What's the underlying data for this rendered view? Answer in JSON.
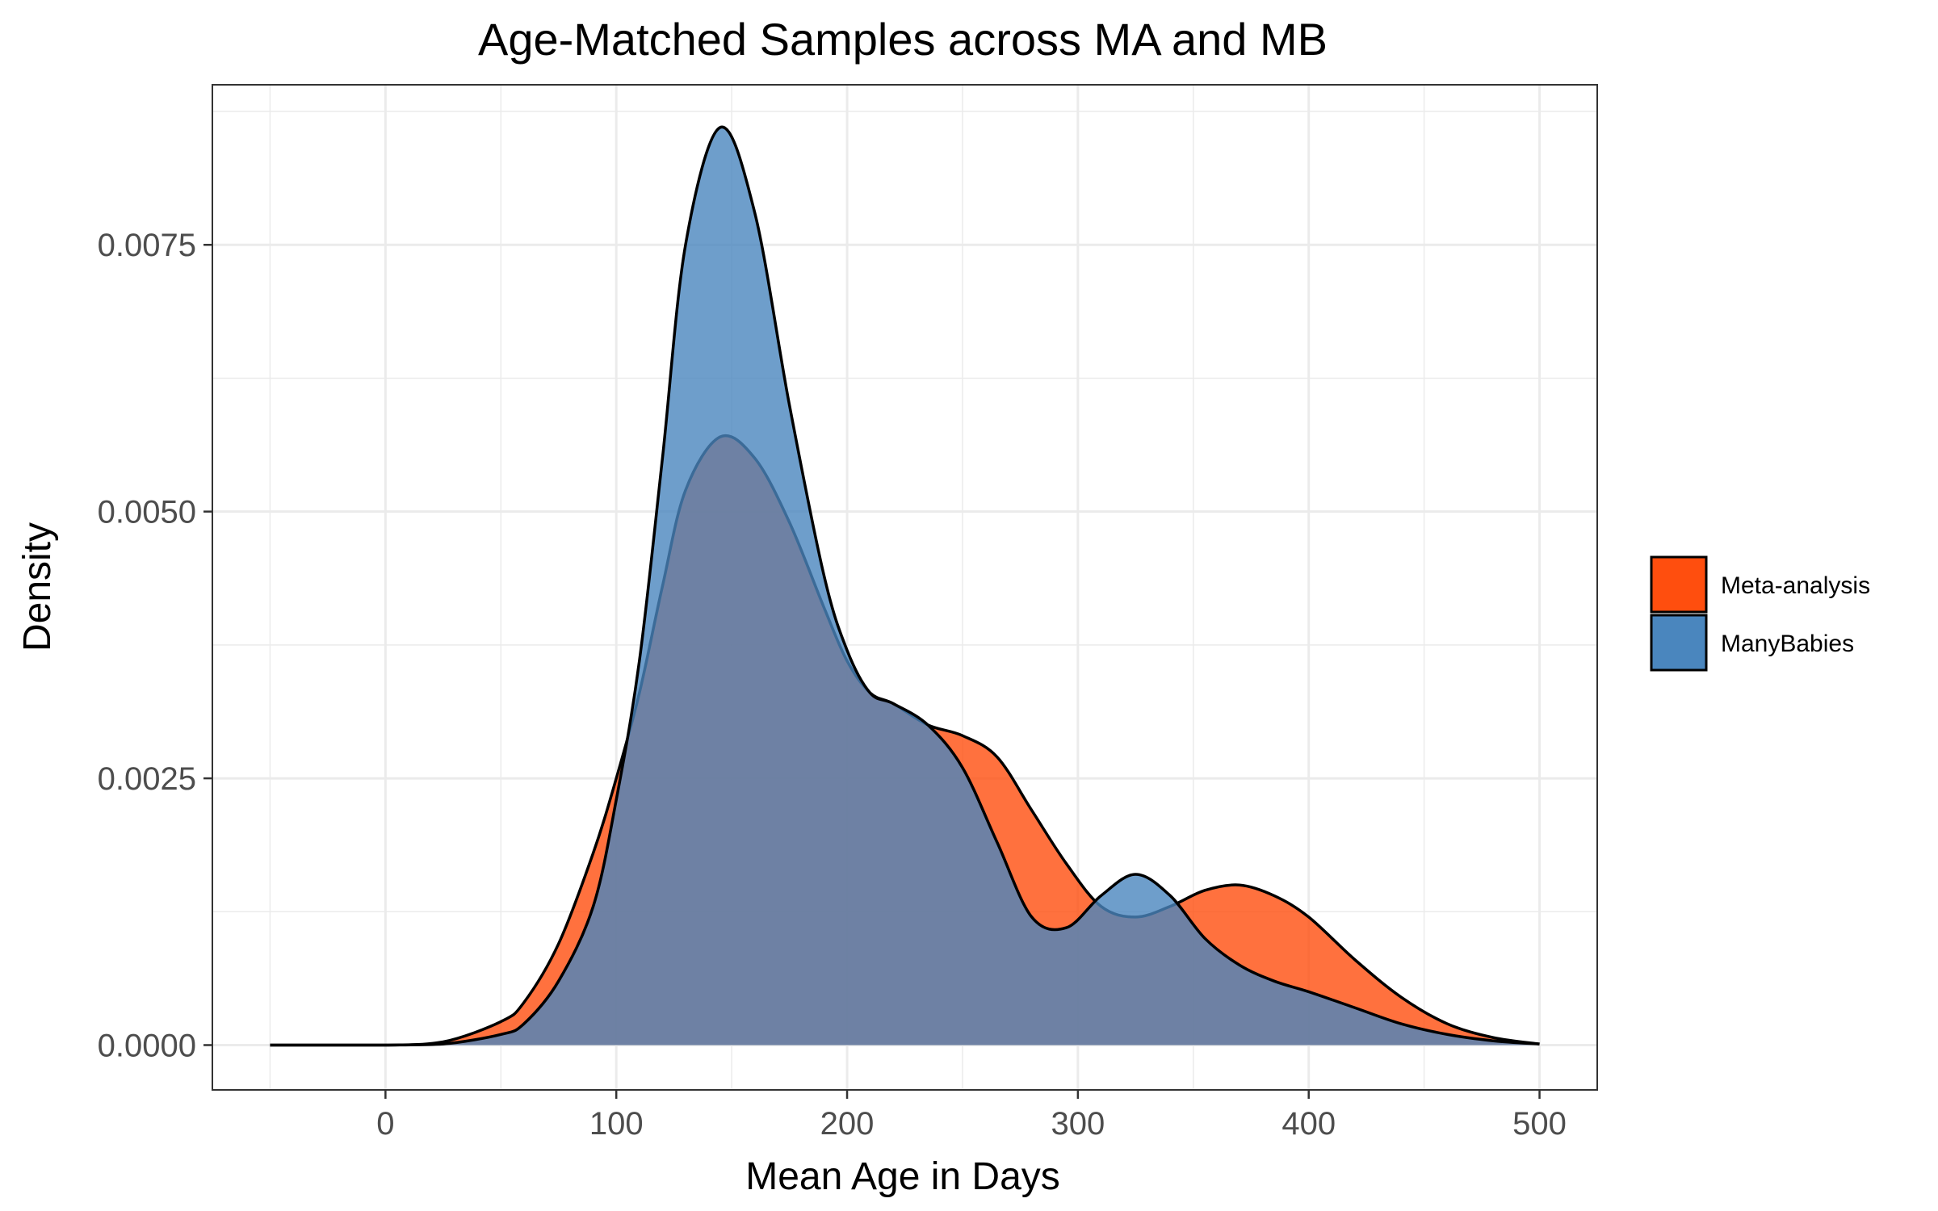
{
  "chart_data": {
    "type": "area",
    "title": "Age-Matched Samples across MA and MB",
    "xlabel": "Mean Age in Days",
    "ylabel": "Density",
    "xlim": [
      -75,
      525
    ],
    "ylim": [
      -0.00042,
      0.009
    ],
    "x_ticks": [
      0,
      100,
      200,
      300,
      400,
      500
    ],
    "x_tick_labels": [
      "0",
      "100",
      "200",
      "300",
      "400",
      "500"
    ],
    "y_ticks": [
      0,
      0.0025,
      0.005,
      0.0075
    ],
    "y_tick_labels": [
      "0.0000",
      "0.0025",
      "0.0050",
      "0.0075"
    ],
    "grid": true,
    "legend_position": "right",
    "series": [
      {
        "name": "Meta-analysis",
        "color": "#FF4E0E",
        "opacity": 0.8,
        "x": [
          -50,
          0,
          25,
          50,
          60,
          75,
          90,
          100,
          110,
          120,
          130,
          145,
          160,
          175,
          190,
          200,
          210,
          220,
          235,
          250,
          265,
          280,
          295,
          310,
          325,
          340,
          355,
          370,
          385,
          400,
          420,
          440,
          460,
          480,
          500
        ],
        "y": [
          0,
          0,
          3e-05,
          0.00022,
          0.0004,
          0.00095,
          0.0018,
          0.0025,
          0.0033,
          0.0043,
          0.0052,
          0.0057,
          0.0055,
          0.0049,
          0.0041,
          0.0036,
          0.0033,
          0.0032,
          0.003,
          0.0029,
          0.0027,
          0.0022,
          0.0017,
          0.0013,
          0.0012,
          0.0013,
          0.00145,
          0.0015,
          0.0014,
          0.0012,
          0.0008,
          0.00045,
          0.0002,
          7e-05,
          1e-05
        ]
      },
      {
        "name": "ManyBabies",
        "color": "#4A86BE",
        "opacity": 0.8,
        "x": [
          -50,
          0,
          25,
          50,
          60,
          75,
          90,
          100,
          110,
          120,
          130,
          145,
          160,
          175,
          190,
          200,
          210,
          220,
          235,
          250,
          265,
          280,
          295,
          310,
          325,
          340,
          355,
          370,
          385,
          400,
          420,
          440,
          460,
          480,
          500
        ],
        "y": [
          0,
          0,
          1e-05,
          0.0001,
          0.0002,
          0.0006,
          0.0013,
          0.0023,
          0.0036,
          0.0055,
          0.0075,
          0.0086,
          0.0078,
          0.006,
          0.0044,
          0.0037,
          0.0033,
          0.0032,
          0.003,
          0.0026,
          0.0019,
          0.0012,
          0.0011,
          0.0014,
          0.0016,
          0.0014,
          0.001,
          0.00075,
          0.0006,
          0.0005,
          0.00035,
          0.0002,
          0.0001,
          4e-05,
          1e-05
        ]
      }
    ]
  }
}
